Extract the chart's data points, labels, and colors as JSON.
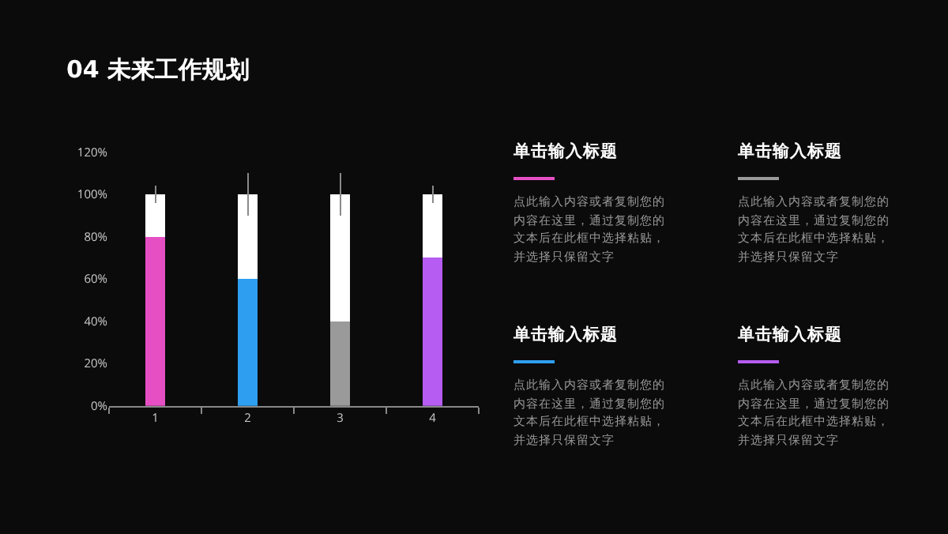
{
  "chart_data": {
    "type": "bar",
    "title": "04 未来工作规划",
    "categories": [
      "1",
      "2",
      "3",
      "4"
    ],
    "stacked": true,
    "series": [
      {
        "colors": [
          "#e64fc4",
          "#2e9ff0",
          "#9a9a9a",
          "#b65cf2"
        ],
        "values": [
          80,
          60,
          40,
          70
        ]
      },
      {
        "color": "#ffffff",
        "values": [
          20,
          40,
          60,
          30
        ],
        "errors": [
          4,
          10,
          10,
          4
        ]
      }
    ],
    "ylim": [
      0,
      120
    ],
    "yticks": [
      {
        "value": 0,
        "label": "0%"
      },
      {
        "value": 20,
        "label": "20%"
      },
      {
        "value": 40,
        "label": "40%"
      },
      {
        "value": 60,
        "label": "60%"
      },
      {
        "value": 80,
        "label": "80%"
      },
      {
        "value": 100,
        "label": "100%"
      },
      {
        "value": 120,
        "label": "120%"
      }
    ],
    "grid": false,
    "annotations": [
      "单击输入标题",
      "点此输入内容或者复制您的内容在这里，通过复制您的文本后在此框中选择粘贴，并选择只保留文字",
      "单击输入标题",
      "点此输入内容或者复制您的内容在这里，通过复制您的文本后在此框中选择粘贴，并选择只保留文字",
      "单击输入标题",
      "点此输入内容或者复制您的内容在这里，通过复制您的文本后在此框中选择粘贴，并选择只保留文字",
      "单击输入标题",
      "点此输入内容或者复制您的内容在这里，通过复制您的文本后在此框中选择粘贴，并选择只保留文字"
    ]
  }
}
